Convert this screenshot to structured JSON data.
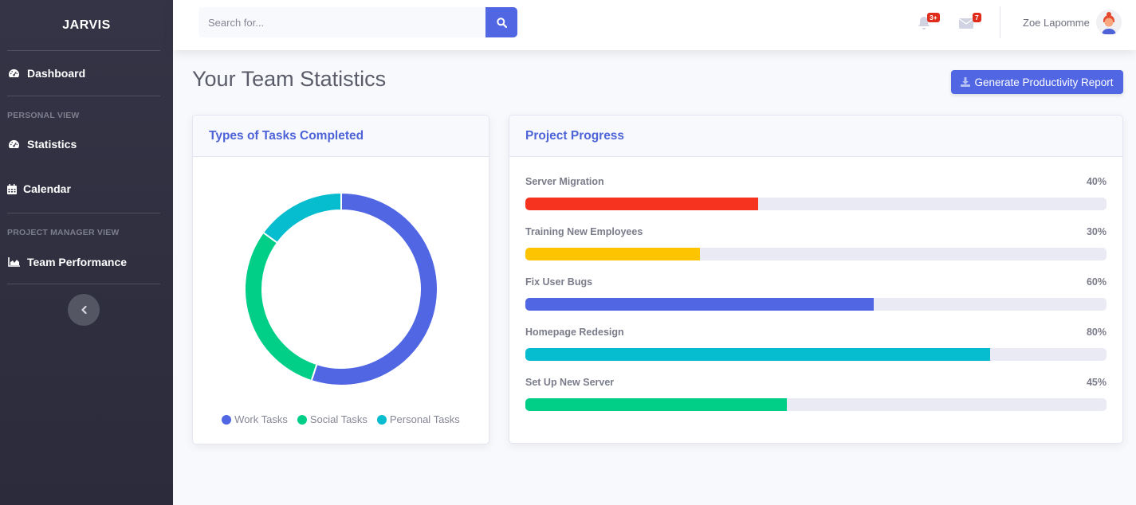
{
  "app": {
    "brand": "JARVIS"
  },
  "sidebar": {
    "dashboard": {
      "label": "Dashboard",
      "icon": "tachometer-icon"
    },
    "sections": [
      {
        "heading": "PERSONAL VIEW",
        "items": [
          {
            "label": "Statistics",
            "icon": "tachometer-icon"
          },
          {
            "label": "Calendar",
            "icon": "calendar-icon"
          }
        ]
      },
      {
        "heading": "PROJECT MANAGER VIEW",
        "items": [
          {
            "label": "Team Performance",
            "icon": "area-chart-icon"
          }
        ]
      }
    ],
    "toggle_icon": "chevron-left-icon"
  },
  "topbar": {
    "search": {
      "placeholder": "Search for...",
      "value": ""
    },
    "alerts": {
      "count": "3+"
    },
    "messages": {
      "count": "7"
    },
    "user": {
      "name": "Zoe Lapomme"
    }
  },
  "page": {
    "title": "Your Team Statistics",
    "report_button": "Generate Productivity Report"
  },
  "colors": {
    "primary": "#5066e3",
    "success": "#1cc88a",
    "info": "#06bccf",
    "danger": "#f5331f",
    "warning": "#fcc401"
  },
  "pie_card": {
    "title": "Types of Tasks Completed"
  },
  "chart_data": {
    "type": "pie",
    "variant": "doughnut",
    "title": "Types of Tasks Completed",
    "categories": [
      "Work Tasks",
      "Social Tasks",
      "Personal Tasks"
    ],
    "values": [
      55,
      30,
      15
    ],
    "colors": [
      "#5066e3",
      "#01cf88",
      "#06bccf"
    ],
    "legend": "bottom"
  },
  "progress_card": {
    "title": "Project Progress",
    "items": [
      {
        "name": "Server Migration",
        "percent": 40,
        "label": "40%",
        "color": "#f5331f"
      },
      {
        "name": "Training New Employees",
        "percent": 30,
        "label": "30%",
        "color": "#fcc401"
      },
      {
        "name": "Fix User Bugs",
        "percent": 60,
        "label": "60%",
        "color": "#5066e3"
      },
      {
        "name": "Homepage Redesign",
        "percent": 80,
        "label": "80%",
        "color": "#06bccf"
      },
      {
        "name": "Set Up New Server",
        "percent": 45,
        "label": "45%",
        "color": "#01cf88"
      }
    ]
  }
}
